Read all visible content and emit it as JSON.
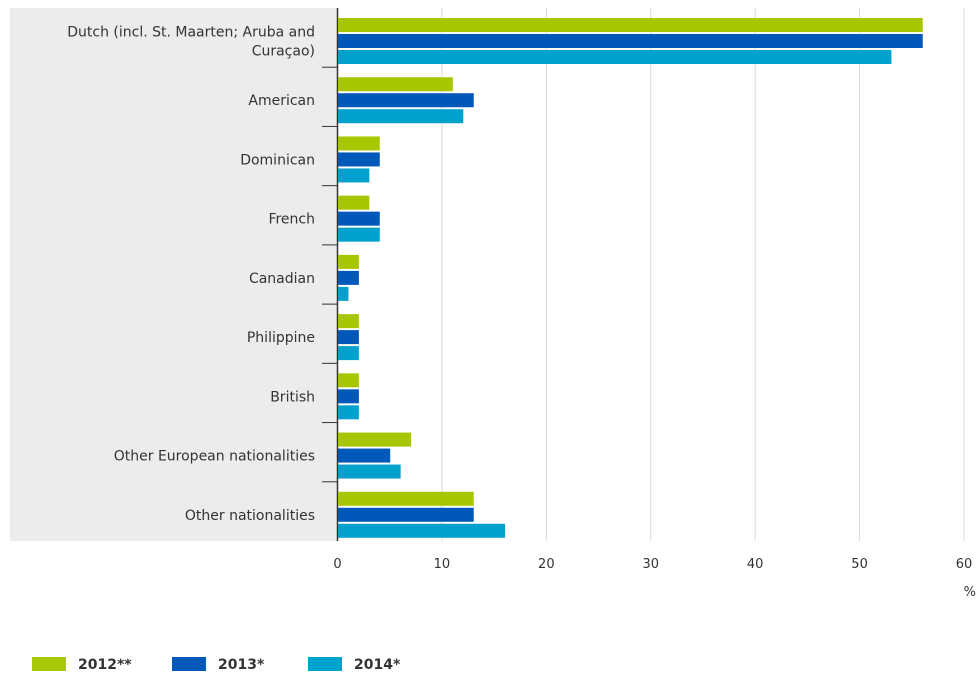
{
  "chart_data": {
    "type": "bar",
    "orientation": "horizontal",
    "title": "",
    "xlabel": "%",
    "ylabel": "",
    "xlim": [
      0,
      60
    ],
    "x_ticks": [
      0,
      10,
      20,
      30,
      40,
      50,
      60
    ],
    "grid": "vertical",
    "legend_position": "bottom-left",
    "categories": [
      "Dutch (incl. St. Maarten; Aruba and Curaçao)",
      "American",
      "Dominican",
      "French",
      "Canadian",
      "Philippine",
      "British",
      "Other European nationalities",
      "Other nationalities"
    ],
    "category_label_lines": [
      [
        "Dutch (incl. St. Maarten; Aruba and",
        "Curaçao)"
      ],
      [
        "American"
      ],
      [
        "Dominican"
      ],
      [
        "French"
      ],
      [
        "Canadian"
      ],
      [
        "Philippine"
      ],
      [
        "British"
      ],
      [
        "Other European nationalities"
      ],
      [
        "Other nationalities"
      ]
    ],
    "series": [
      {
        "name": "2012**",
        "color": "#a8c600",
        "values": [
          56,
          11,
          4,
          3,
          2,
          2,
          2,
          7,
          13
        ]
      },
      {
        "name": "2013*",
        "color": "#0058b8",
        "values": [
          56,
          13,
          4,
          4,
          2,
          2,
          2,
          5,
          13
        ]
      },
      {
        "name": "2014*",
        "color": "#00a1cd",
        "values": [
          53,
          12,
          3,
          4,
          1,
          2,
          2,
          6,
          16
        ]
      }
    ]
  }
}
